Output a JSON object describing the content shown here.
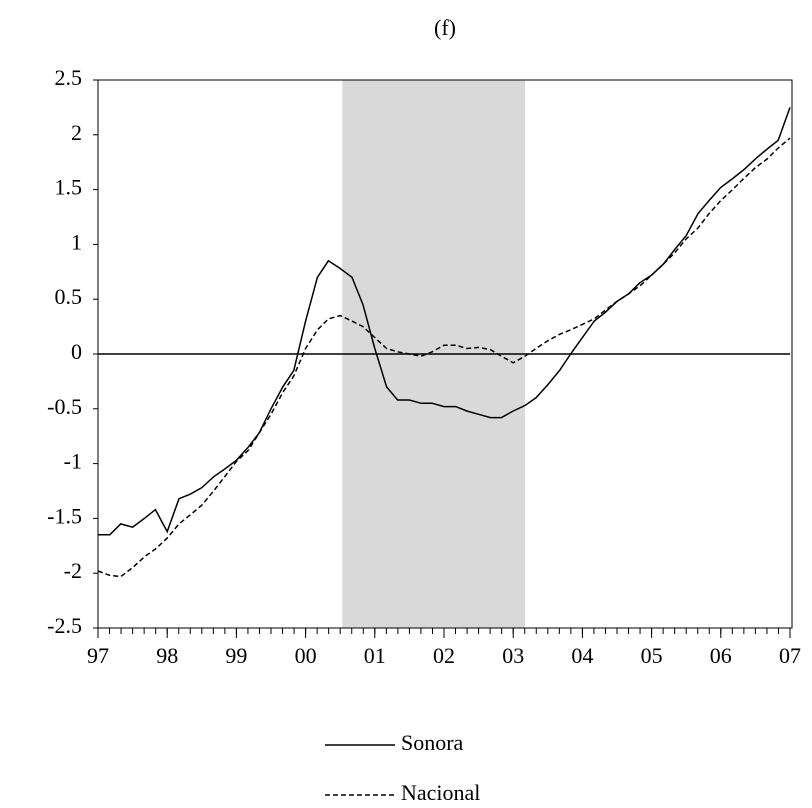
{
  "chart_data": {
    "type": "line",
    "title": "(f)",
    "x": [
      1997,
      1997.17,
      1997.33,
      1997.5,
      1997.67,
      1997.83,
      1998,
      1998.17,
      1998.33,
      1998.5,
      1998.67,
      1998.83,
      1999,
      1999.17,
      1999.33,
      1999.5,
      1999.67,
      1999.83,
      2000,
      2000.17,
      2000.33,
      2000.5,
      2000.67,
      2000.83,
      2001,
      2001.17,
      2001.33,
      2001.5,
      2001.67,
      2001.83,
      2002,
      2002.17,
      2002.33,
      2002.5,
      2002.67,
      2002.83,
      2003,
      2003.17,
      2003.33,
      2003.5,
      2003.67,
      2003.83,
      2004,
      2004.17,
      2004.33,
      2004.5,
      2004.67,
      2004.83,
      2005,
      2005.17,
      2005.33,
      2005.5,
      2005.67,
      2005.83,
      2006,
      2006.17,
      2006.33,
      2006.5,
      2006.67,
      2006.83,
      2007
    ],
    "series": [
      {
        "name": "Sonora",
        "color": "#000000",
        "dash": false,
        "values": [
          -1.65,
          -1.65,
          -1.55,
          -1.58,
          -1.5,
          -1.42,
          -1.62,
          -1.32,
          -1.28,
          -1.22,
          -1.12,
          -1.05,
          -0.97,
          -0.85,
          -0.72,
          -0.5,
          -0.3,
          -0.15,
          0.3,
          0.7,
          0.85,
          0.78,
          0.7,
          0.45,
          0.05,
          -0.3,
          -0.42,
          -0.42,
          -0.45,
          -0.45,
          -0.48,
          -0.48,
          -0.52,
          -0.55,
          -0.58,
          -0.58,
          -0.52,
          -0.47,
          -0.4,
          -0.28,
          -0.15,
          0.0,
          0.15,
          0.3,
          0.38,
          0.48,
          0.55,
          0.65,
          0.72,
          0.82,
          0.95,
          1.08,
          1.28,
          1.4,
          1.52,
          1.6,
          1.68,
          1.78,
          1.87,
          1.95,
          2.25
        ]
      },
      {
        "name": "Nacional",
        "color": "#000000",
        "dash": true,
        "values": [
          -1.98,
          -2.02,
          -2.03,
          -1.95,
          -1.85,
          -1.78,
          -1.68,
          -1.55,
          -1.47,
          -1.38,
          -1.25,
          -1.12,
          -0.98,
          -0.88,
          -0.72,
          -0.55,
          -0.35,
          -0.2,
          0.05,
          0.22,
          0.32,
          0.35,
          0.3,
          0.25,
          0.15,
          0.05,
          0.02,
          0.0,
          -0.02,
          0.02,
          0.08,
          0.08,
          0.05,
          0.06,
          0.04,
          -0.02,
          -0.08,
          -0.02,
          0.05,
          0.12,
          0.18,
          0.22,
          0.27,
          0.32,
          0.4,
          0.48,
          0.55,
          0.62,
          0.72,
          0.82,
          0.92,
          1.05,
          1.15,
          1.28,
          1.4,
          1.5,
          1.6,
          1.7,
          1.78,
          1.88,
          1.97
        ]
      }
    ],
    "xlim": [
      1997,
      2007
    ],
    "xticks": [
      {
        "value": 1997,
        "label": "97"
      },
      {
        "value": 1998,
        "label": "98"
      },
      {
        "value": 1999,
        "label": "99"
      },
      {
        "value": 2000,
        "label": "00"
      },
      {
        "value": 2001,
        "label": "01"
      },
      {
        "value": 2002,
        "label": "02"
      },
      {
        "value": 2003,
        "label": "03"
      },
      {
        "value": 2004,
        "label": "04"
      },
      {
        "value": 2005,
        "label": "05"
      },
      {
        "value": 2006,
        "label": "06"
      },
      {
        "value": 2007,
        "label": "07"
      }
    ],
    "ylim": [
      -2.5,
      2.5
    ],
    "yticks": [
      2.5,
      2,
      1.5,
      1,
      0.5,
      0,
      -0.5,
      -1,
      -1.5,
      -2,
      -2.5
    ],
    "hline": 0,
    "shade": [
      2000.53,
      2003.17
    ],
    "shade_color": "#d9d9d9",
    "legend": "bottom"
  }
}
